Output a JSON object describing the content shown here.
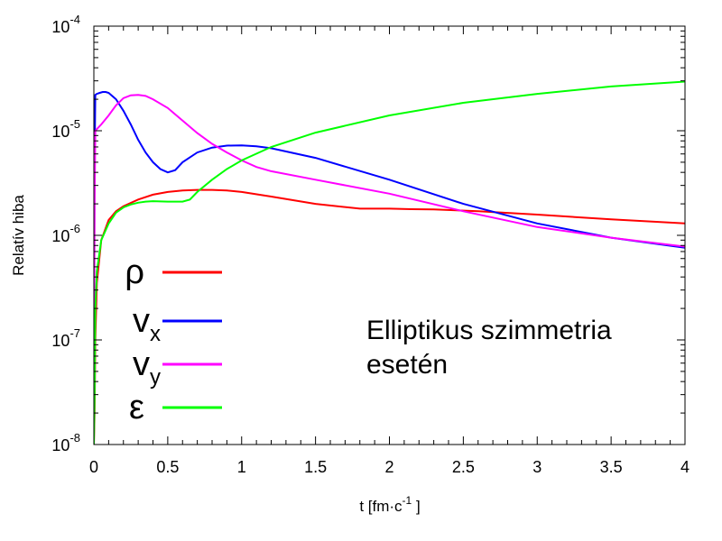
{
  "chart_data": {
    "type": "line",
    "xlabel": "t [fm·c⁻¹ ]",
    "xlabel_parts": {
      "main": "t [fm·c",
      "sup": "-1",
      "tail": " ]"
    },
    "ylabel": "Relatív hiba",
    "xlim": [
      0,
      4
    ],
    "ylim": [
      1e-08,
      0.0001
    ],
    "yscale": "log",
    "grid": false,
    "legend_placement": "left",
    "x_ticks": [
      "0",
      "0.5",
      "1",
      "1.5",
      "2",
      "2.5",
      "3",
      "3.5",
      "4"
    ],
    "x_tick_values": [
      0,
      0.5,
      1,
      1.5,
      2,
      2.5,
      3,
      3.5,
      4
    ],
    "y_ticks": [
      {
        "base": "10",
        "exp": "-8",
        "value": 1e-08
      },
      {
        "base": "10",
        "exp": "-7",
        "value": 1e-07
      },
      {
        "base": "10",
        "exp": "-6",
        "value": 1e-06
      },
      {
        "base": "10",
        "exp": "-5",
        "value": 1e-05
      },
      {
        "base": "10",
        "exp": "-4",
        "value": 0.0001
      }
    ],
    "annotation": [
      "Elliptikus szimmetria",
      "esetén"
    ],
    "series": [
      {
        "name": "ρ",
        "subscript": "",
        "color": "#ff0000",
        "x": [
          0,
          0.005,
          0.01,
          0.02,
          0.05,
          0.1,
          0.15,
          0.2,
          0.3,
          0.4,
          0.5,
          0.6,
          0.7,
          0.8,
          0.9,
          1.0,
          1.2,
          1.5,
          1.8,
          2.0,
          2.15,
          2.3,
          2.6,
          3.0,
          3.5,
          4.0
        ],
        "y": [
          1e-08,
          2e-08,
          1e-07,
          3.5e-07,
          9e-07,
          1.4e-06,
          1.7e-06,
          1.9e-06,
          2.2e-06,
          2.45e-06,
          2.6e-06,
          2.68e-06,
          2.72e-06,
          2.72e-06,
          2.68e-06,
          2.6e-06,
          2.35e-06,
          2e-06,
          1.8e-06,
          1.8e-06,
          1.78e-06,
          1.77e-06,
          1.7e-06,
          1.58e-06,
          1.42e-06,
          1.3e-06
        ]
      },
      {
        "name": "v",
        "subscript": "x",
        "color": "#0000ff",
        "x": [
          0,
          0.005,
          0.01,
          0.02,
          0.04,
          0.06,
          0.08,
          0.1,
          0.15,
          0.2,
          0.25,
          0.3,
          0.35,
          0.4,
          0.45,
          0.5,
          0.55,
          0.6,
          0.7,
          0.8,
          0.9,
          1.0,
          1.1,
          1.2,
          1.5,
          2.0,
          2.5,
          3.0,
          3.5,
          4.0
        ],
        "y": [
          2e-08,
          5e-06,
          2.2e-05,
          2.25e-05,
          2.3e-05,
          2.35e-05,
          2.35e-05,
          2.3e-05,
          2e-05,
          1.55e-05,
          1.15e-05,
          8.2e-06,
          6.2e-06,
          5e-06,
          4.3e-06,
          4e-06,
          4.2e-06,
          5e-06,
          6.2e-06,
          6.9e-06,
          7.2e-06,
          7.25e-06,
          7.1e-06,
          6.8e-06,
          5.5e-06,
          3.4e-06,
          2e-06,
          1.3e-06,
          9.5e-07,
          7.6e-07
        ]
      },
      {
        "name": "v",
        "subscript": "y",
        "color": "#ff00ff",
        "x": [
          0,
          0.005,
          0.01,
          0.05,
          0.1,
          0.15,
          0.2,
          0.25,
          0.3,
          0.35,
          0.4,
          0.5,
          0.6,
          0.7,
          0.8,
          0.9,
          1.0,
          1.1,
          1.2,
          1.5,
          2.0,
          2.5,
          3.0,
          3.5,
          4.0
        ],
        "y": [
          1e-08,
          2e-06,
          1e-05,
          1.15e-05,
          1.4e-05,
          1.75e-05,
          2.05e-05,
          2.18e-05,
          2.2e-05,
          2.15e-05,
          2e-05,
          1.65e-05,
          1.25e-05,
          9.5e-06,
          7.5e-06,
          6.2e-06,
          5.2e-06,
          4.5e-06,
          4.1e-06,
          3.4e-06,
          2.5e-06,
          1.7e-06,
          1.2e-06,
          9.5e-07,
          7.8e-07
        ]
      },
      {
        "name": "ε",
        "subscript": "",
        "color": "#00ff00",
        "x": [
          0,
          0.005,
          0.01,
          0.02,
          0.05,
          0.1,
          0.15,
          0.2,
          0.25,
          0.3,
          0.35,
          0.4,
          0.5,
          0.6,
          0.65,
          0.7,
          0.8,
          0.9,
          1.0,
          1.2,
          1.5,
          2.0,
          2.5,
          3.0,
          3.5,
          4.0
        ],
        "y": [
          1e-08,
          3e-08,
          2e-07,
          4.5e-07,
          9e-07,
          1.3e-06,
          1.65e-06,
          1.85e-06,
          1.97e-06,
          2.05e-06,
          2.1e-06,
          2.12e-06,
          2.1e-06,
          2.1e-06,
          2.2e-06,
          2.6e-06,
          3.4e-06,
          4.3e-06,
          5.2e-06,
          7e-06,
          9.6e-06,
          1.4e-05,
          1.85e-05,
          2.25e-05,
          2.65e-05,
          2.95e-05
        ]
      }
    ]
  }
}
